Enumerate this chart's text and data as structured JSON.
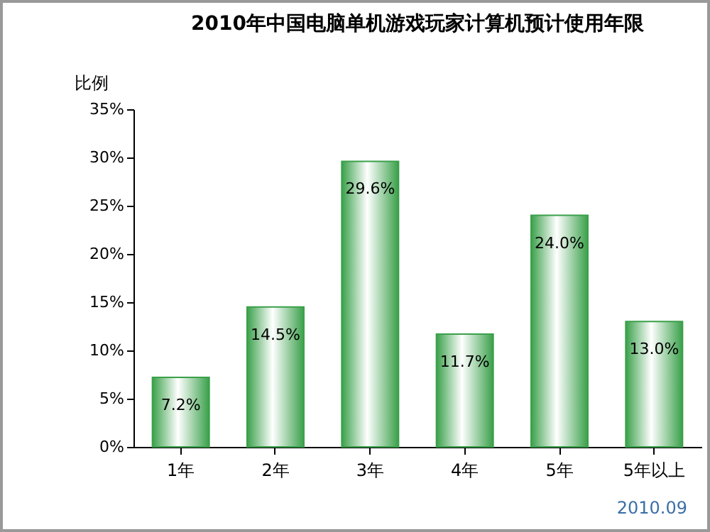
{
  "chart_data": {
    "type": "bar",
    "title": "2010年中国电脑单机游戏玩家计算机预计使用年限",
    "ylabel": "比例",
    "categories": [
      "1年",
      "2年",
      "3年",
      "4年",
      "5年",
      "5年以上"
    ],
    "values": [
      7.2,
      14.5,
      29.6,
      11.7,
      24.0,
      13.0
    ],
    "value_labels": [
      "7.2%",
      "14.5%",
      "29.6%",
      "11.7%",
      "24.0%",
      "13.0%"
    ],
    "color": "#3aa04a",
    "ylim": [
      0,
      35
    ],
    "yticks": [
      {
        "value": 0,
        "label": "0%"
      },
      {
        "value": 5,
        "label": "5%"
      },
      {
        "value": 10,
        "label": "10%"
      },
      {
        "value": 15,
        "label": "15%"
      },
      {
        "value": 20,
        "label": "20%"
      },
      {
        "value": 25,
        "label": "25%"
      },
      {
        "value": 30,
        "label": "30%"
      },
      {
        "value": 35,
        "label": "35%"
      }
    ],
    "annotations": [
      "2010.09"
    ]
  }
}
